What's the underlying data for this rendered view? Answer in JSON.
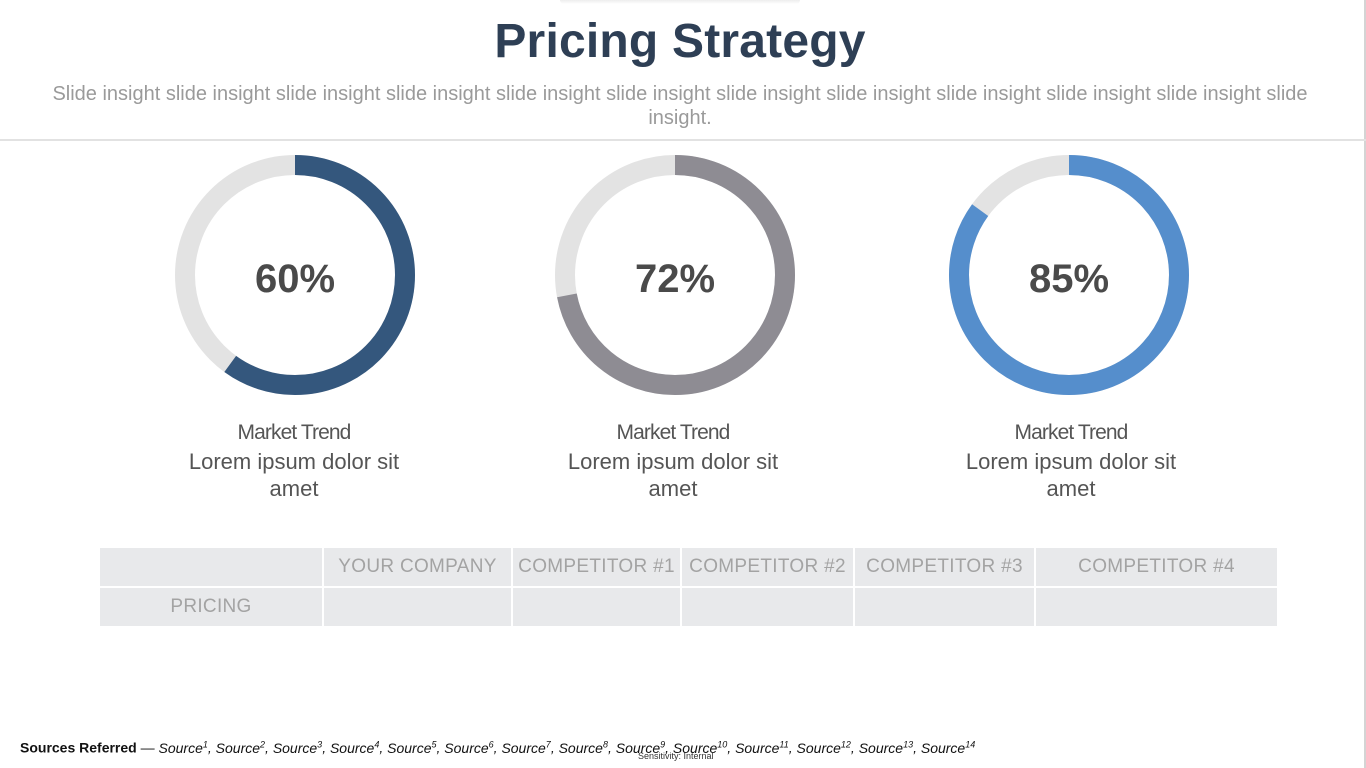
{
  "slide": {
    "title": "Pricing Strategy",
    "subtitle": "Slide insight slide insight slide insight slide insight slide insight slide insight slide insight slide insight slide insight slide insight slide insight slide insight."
  },
  "donuts": [
    {
      "percent_label": "60%",
      "value": 0.6,
      "color": "#34577d",
      "track_color": "#e3e3e3",
      "caption_title": "Market Trend",
      "caption_body": "Lorem ipsum dolor sit amet"
    },
    {
      "percent_label": "72%",
      "value": 0.72,
      "color": "#8e8c93",
      "track_color": "#e3e3e3",
      "caption_title": "Market Trend",
      "caption_body": "Lorem ipsum dolor sit amet"
    },
    {
      "percent_label": "85%",
      "value": 0.85,
      "color": "#558ecc",
      "track_color": "#e3e3e3",
      "caption_title": "Market Trend",
      "caption_body": "Lorem ipsum dolor sit amet"
    }
  ],
  "table": {
    "headers": [
      "",
      "YOUR COMPANY",
      "COMPETITOR #1",
      "COMPETITOR #2",
      "COMPETITOR #3",
      "COMPETITOR #4"
    ],
    "rows": [
      [
        "PRICING",
        "",
        "",
        "",
        "",
        ""
      ]
    ]
  },
  "footer": {
    "sources_label": "Sources Referred",
    "separator": " — ",
    "source_prefix": "Source",
    "sources": [
      "1",
      "2",
      "3",
      "4",
      "5",
      "6",
      "7",
      "8",
      "9",
      "10",
      "11",
      "12",
      "13",
      "14"
    ],
    "sensitivity": "Sensitivity: Internal"
  }
}
